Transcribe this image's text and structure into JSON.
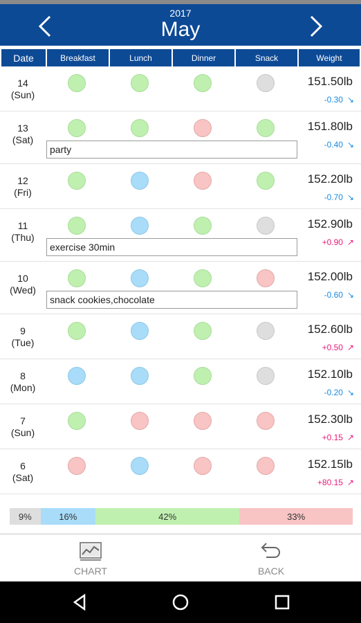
{
  "header": {
    "year": "2017",
    "month": "May"
  },
  "columns": [
    "Date",
    "Breakfast",
    "Lunch",
    "Dinner",
    "Snack",
    "Weight"
  ],
  "colors": {
    "header_bg": "#0d4a96",
    "green": "#c0f0b0",
    "blue": "#a8dcf8",
    "red": "#f8c4c4",
    "gray": "#dedede",
    "down": "#1a8ae0",
    "up": "#e81a7a"
  },
  "rows": [
    {
      "day": "14",
      "weekday": "(Sun)",
      "meals": [
        "green",
        "green",
        "green",
        "gray"
      ],
      "weight": "151.50lb",
      "delta": "-0.30",
      "trend": "down",
      "note": ""
    },
    {
      "day": "13",
      "weekday": "(Sat)",
      "meals": [
        "green",
        "green",
        "red",
        "green"
      ],
      "weight": "151.80lb",
      "delta": "-0.40",
      "trend": "down",
      "note": "party"
    },
    {
      "day": "12",
      "weekday": "(Fri)",
      "meals": [
        "green",
        "blue",
        "red",
        "green"
      ],
      "weight": "152.20lb",
      "delta": "-0.70",
      "trend": "down",
      "note": ""
    },
    {
      "day": "11",
      "weekday": "(Thu)",
      "meals": [
        "green",
        "blue",
        "green",
        "gray"
      ],
      "weight": "152.90lb",
      "delta": "+0.90",
      "trend": "up",
      "note": "exercise 30min"
    },
    {
      "day": "10",
      "weekday": "(Wed)",
      "meals": [
        "green",
        "blue",
        "green",
        "red"
      ],
      "weight": "152.00lb",
      "delta": "-0.60",
      "trend": "down",
      "note": "snack cookies,chocolate"
    },
    {
      "day": "9",
      "weekday": "(Tue)",
      "meals": [
        "green",
        "blue",
        "green",
        "gray"
      ],
      "weight": "152.60lb",
      "delta": "+0.50",
      "trend": "up",
      "note": ""
    },
    {
      "day": "8",
      "weekday": "(Mon)",
      "meals": [
        "blue",
        "blue",
        "green",
        "gray"
      ],
      "weight": "152.10lb",
      "delta": "-0.20",
      "trend": "down",
      "note": ""
    },
    {
      "day": "7",
      "weekday": "(Sun)",
      "meals": [
        "green",
        "red",
        "red",
        "red"
      ],
      "weight": "152.30lb",
      "delta": "+0.15",
      "trend": "up",
      "note": ""
    },
    {
      "day": "6",
      "weekday": "(Sat)",
      "meals": [
        "red",
        "blue",
        "red",
        "red"
      ],
      "weight": "152.15lb",
      "delta": "+80.15",
      "trend": "up",
      "note": ""
    }
  ],
  "summary": [
    {
      "label": "9%",
      "value": 9,
      "color": "#dedede"
    },
    {
      "label": "16%",
      "value": 16,
      "color": "#a8dcf8"
    },
    {
      "label": "42%",
      "value": 42,
      "color": "#c0f0b0"
    },
    {
      "label": "33%",
      "value": 33,
      "color": "#f8c4c4"
    }
  ],
  "bottom": {
    "chart_label": "CHART",
    "back_label": "BACK"
  }
}
